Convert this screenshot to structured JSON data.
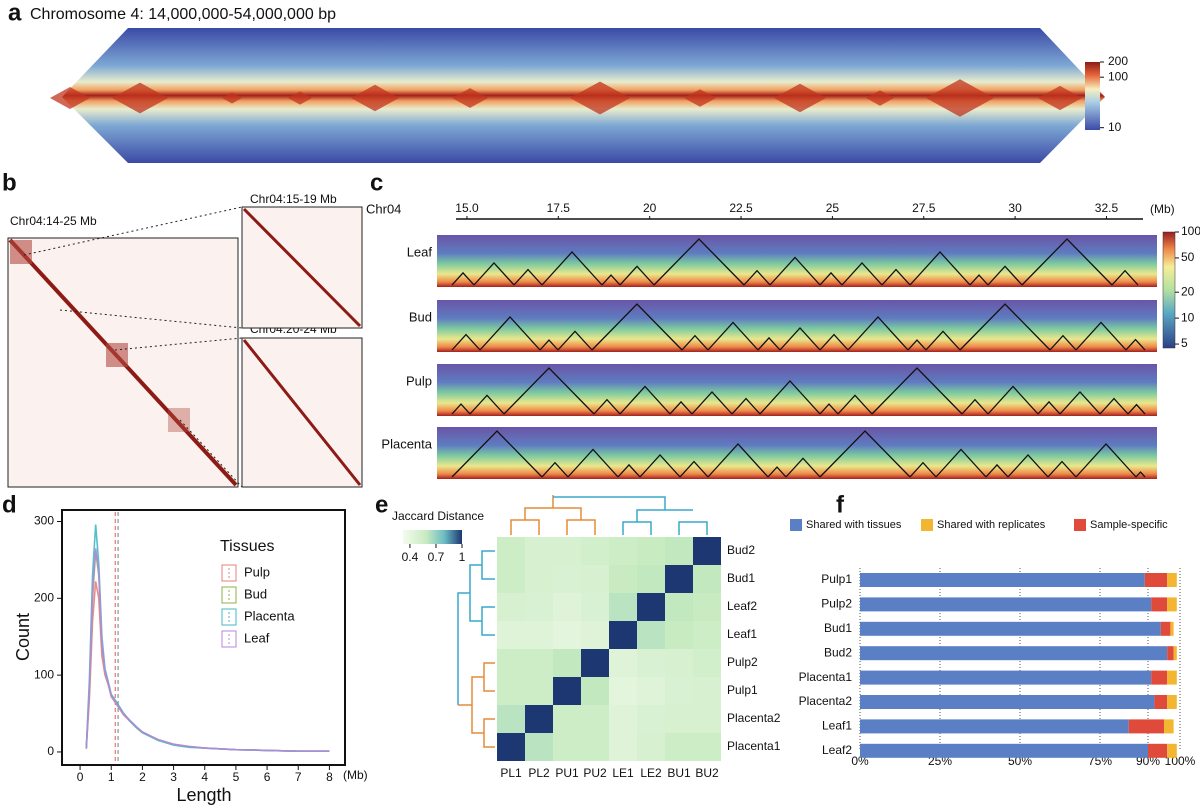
{
  "chart_data": [
    {
      "type": "hic-triangle",
      "panel_label": "a",
      "title": "Chromosome 4: 14,000,000-54,000,000 bp",
      "colorbar": {
        "lim": [
          9,
          200
        ],
        "log": true,
        "ticks": [
          10,
          100,
          200
        ]
      }
    },
    {
      "type": "hic-zoom",
      "panel_label": "b",
      "main_title": "Chr04:14-25 Mb",
      "zoom_titles": [
        "Chr04:15-19 Mb",
        "Chr04:20-24 Mb"
      ]
    },
    {
      "type": "hic-tracks",
      "panel_label": "c",
      "axis_label": "Chr04",
      "unit": "(Mb)",
      "xlim": [
        14.7,
        33.5
      ],
      "xticks": [
        {
          "value": 15,
          "label": "15.0"
        },
        17.5,
        20,
        22.5,
        25,
        27.5,
        30,
        32.5
      ],
      "tracks": [
        "Leaf",
        "Bud",
        "Pulp",
        "Placenta"
      ],
      "colorbar": {
        "lim": [
          4.5,
          100
        ],
        "log": true,
        "ticks": [
          5,
          10,
          20,
          50,
          100
        ]
      }
    },
    {
      "type": "line",
      "panel_label": "d",
      "xlabel": "Length",
      "xunit": "(Mb)",
      "ylabel": "Count",
      "legend_title": "Tissues",
      "x": [
        0.2,
        0.3,
        0.4,
        0.5,
        0.6,
        0.7,
        0.8,
        0.9,
        1.0,
        1.2,
        1.4,
        1.6,
        1.8,
        2.0,
        2.5,
        3.0,
        3.5,
        4.0,
        5.0,
        6.0,
        7.0,
        8.0
      ],
      "series": [
        {
          "name": "Pulp",
          "color": "#e8807c",
          "values": [
            5,
            70,
            170,
            222,
            200,
            125,
            100,
            88,
            72,
            60,
            48,
            40,
            32,
            25,
            16,
            10,
            7,
            5,
            3,
            2,
            1,
            1
          ]
        },
        {
          "name": "Bud",
          "color": "#8fb046",
          "values": [
            4,
            80,
            200,
            262,
            230,
            140,
            105,
            90,
            74,
            62,
            50,
            41,
            33,
            26,
            16,
            10,
            7,
            5,
            3,
            2,
            1,
            1
          ]
        },
        {
          "name": "Placenta",
          "color": "#44b8c4",
          "values": [
            6,
            95,
            230,
            296,
            245,
            150,
            108,
            92,
            75,
            63,
            50,
            40,
            32,
            25,
            15,
            9,
            6,
            5,
            3,
            2,
            1,
            1
          ]
        },
        {
          "name": "Leaf",
          "color": "#b388e0",
          "values": [
            5,
            85,
            210,
            265,
            235,
            142,
            104,
            90,
            73,
            61,
            49,
            41,
            33,
            26,
            16,
            10,
            7,
            5,
            3,
            2,
            1,
            1
          ]
        }
      ],
      "vlines": [
        {
          "x": 1.13,
          "color": "#e8807c"
        },
        {
          "x": 1.22,
          "color": "#9a9a9a"
        }
      ],
      "xlim": [
        -0.58,
        8.5
      ],
      "xticks": [
        0,
        1,
        2,
        3,
        4,
        5,
        6,
        7,
        8
      ],
      "ylim": [
        -17,
        315
      ],
      "yticks": [
        0,
        100,
        200,
        300
      ]
    },
    {
      "type": "matrix",
      "panel_label": "e",
      "colorbar_title": "Jaccard Distance",
      "columns": [
        "PL1",
        "PL2",
        "PU1",
        "PU2",
        "LE1",
        "LE2",
        "BU1",
        "BU2"
      ],
      "rows": [
        "Bud2",
        "Bud1",
        "Leaf2",
        "Leaf1",
        "Pulp2",
        "Pulp1",
        "Placenta2",
        "Placenta1"
      ],
      "values": [
        [
          0.55,
          0.5,
          0.5,
          0.52,
          0.55,
          0.58,
          0.6,
          1
        ],
        [
          0.55,
          0.5,
          0.48,
          0.5,
          0.58,
          0.6,
          1,
          0.6
        ],
        [
          0.5,
          0.48,
          0.45,
          0.48,
          0.62,
          1,
          0.6,
          0.58
        ],
        [
          0.45,
          0.45,
          0.42,
          0.45,
          1,
          0.62,
          0.58,
          0.55
        ],
        [
          0.55,
          0.55,
          0.6,
          1,
          0.45,
          0.48,
          0.5,
          0.52
        ],
        [
          0.55,
          0.55,
          1,
          0.6,
          0.42,
          0.45,
          0.48,
          0.5
        ],
        [
          0.62,
          1,
          0.55,
          0.55,
          0.45,
          0.48,
          0.5,
          0.5
        ],
        [
          1,
          0.62,
          0.55,
          0.55,
          0.45,
          0.5,
          0.55,
          0.55
        ]
      ],
      "colorbar": {
        "lim": [
          0.32,
          1
        ],
        "ticks": [
          0.4,
          0.7,
          1
        ]
      }
    },
    {
      "type": "stacked-barh",
      "panel_label": "f",
      "categories": [
        "Pulp1",
        "Pulp2",
        "Bud1",
        "Bud2",
        "Placenta1",
        "Placenta2",
        "Leaf1",
        "Leaf2"
      ],
      "series": [
        {
          "name": "Shared with tissues",
          "color": "#5b7fc4",
          "values": [
            89,
            91,
            94,
            96,
            91,
            92,
            84,
            90
          ]
        },
        {
          "name": "Sample-specific",
          "color": "#e04a3a",
          "values": [
            7,
            5,
            3,
            2,
            5,
            4,
            11,
            6
          ]
        },
        {
          "name": "Shared with replicates",
          "color": "#f2b630",
          "values": [
            3,
            3,
            1,
            1,
            3,
            3,
            3,
            3
          ]
        }
      ],
      "xlim": [
        0,
        100
      ],
      "xticks": [
        {
          "value": 0,
          "label": "0%"
        },
        {
          "value": 25,
          "label": "25%"
        },
        {
          "value": 50,
          "label": "50%"
        },
        {
          "value": 75,
          "label": "75%"
        },
        {
          "value": 90,
          "label": "90%"
        },
        {
          "value": 100,
          "label": "100%"
        }
      ],
      "grid": true
    }
  ]
}
